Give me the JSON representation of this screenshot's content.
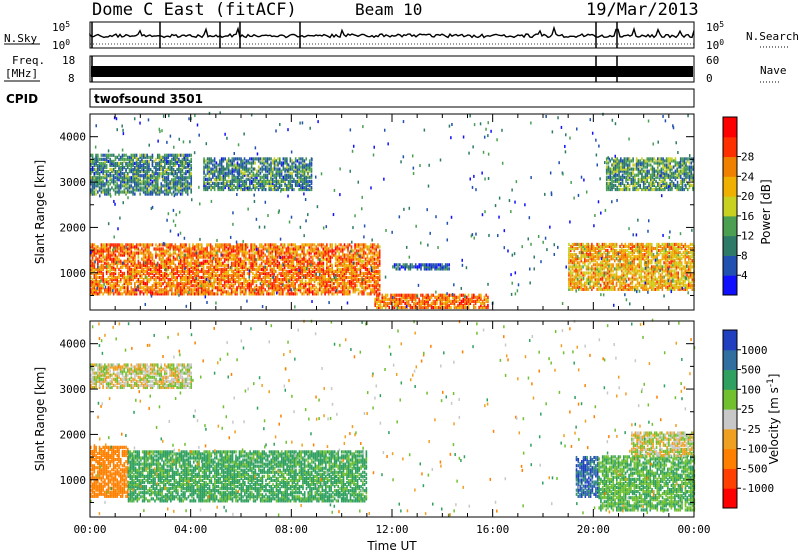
{
  "header": {
    "station": "Dome C East (fitACF)",
    "beam": "Beam 10",
    "date": "19/Mar/2013"
  },
  "top_panels": {
    "nsky_label": "N.Sky",
    "nsearch_label": "N.Search",
    "nsky_ticks": [
      "10^5",
      "10^0"
    ],
    "freq_label_1": "Freq.",
    "freq_label_2": "[MHz]",
    "freq_ticks": [
      "18",
      "8"
    ],
    "nave_label": "Nave",
    "nave_ticks": [
      "60",
      "0"
    ],
    "cpid_label": "CPID",
    "cpid_value": "twofsound 3501"
  },
  "colors": {
    "power_scale": [
      "#1010ff",
      "#2050b0",
      "#2e7a68",
      "#4aa050",
      "#c8d020",
      "#f0b000",
      "#f08000",
      "#ff3000",
      "#ff0000"
    ],
    "velocity_scale": [
      "#ff0000",
      "#ff4000",
      "#ff8000",
      "#f0a020",
      "#c8c8c8",
      "#70c030",
      "#30a060",
      "#3070a0",
      "#2040c0"
    ]
  },
  "chart_data": [
    {
      "type": "heatmap",
      "title": "",
      "xlabel": "",
      "ylabel": "Slant Range [km]",
      "xlim": [
        "00:00",
        "24:00"
      ],
      "ylim": [
        180,
        4500
      ],
      "x_ticks": [
        "00:00",
        "04:00",
        "08:00",
        "12:00",
        "16:00",
        "20:00",
        "00:00"
      ],
      "y_ticks": [
        1000,
        2000,
        3000,
        4000
      ],
      "colorbar": {
        "label": "Power [dB]",
        "ticks": [
          4,
          8,
          12,
          16,
          20,
          24,
          28
        ]
      },
      "regions": [
        {
          "t_start": 0.0,
          "t_end": 11.5,
          "r_min": 500,
          "r_max": 1600,
          "value": 28
        },
        {
          "t_start": 11.3,
          "t_end": 15.8,
          "r_min": 200,
          "r_max": 500,
          "value": 28
        },
        {
          "t_start": 12.0,
          "t_end": 14.3,
          "r_min": 1050,
          "r_max": 1150,
          "value": 8
        },
        {
          "t_start": 19.0,
          "t_end": 24.0,
          "r_min": 600,
          "r_max": 1600,
          "value": 24
        },
        {
          "t_start": 0.0,
          "t_end": 4.0,
          "r_min": 2700,
          "r_max": 3600,
          "value": 12
        },
        {
          "t_start": 4.5,
          "t_end": 8.8,
          "r_min": 2800,
          "r_max": 3500,
          "value": 12
        },
        {
          "t_start": 20.5,
          "t_end": 24.0,
          "r_min": 2800,
          "r_max": 3500,
          "value": 14
        }
      ]
    },
    {
      "type": "heatmap",
      "title": "",
      "xlabel": "Time UT",
      "ylabel": "Slant Range [km]",
      "xlim": [
        "00:00",
        "24:00"
      ],
      "ylim": [
        180,
        4500
      ],
      "x_ticks": [
        "00:00",
        "04:00",
        "08:00",
        "12:00",
        "16:00",
        "20:00",
        "00:00"
      ],
      "y_ticks": [
        1000,
        2000,
        3000,
        4000
      ],
      "colorbar": {
        "label": "Velocity [m s^-1]",
        "ticks": [
          1000,
          500,
          100,
          25,
          -25,
          -100,
          -500,
          -1000
        ]
      },
      "regions": [
        {
          "t_start": 0.0,
          "t_end": 1.5,
          "r_min": 600,
          "r_max": 1700,
          "value": -300
        },
        {
          "t_start": 1.5,
          "t_end": 11.0,
          "r_min": 500,
          "r_max": 1600,
          "value": 150
        },
        {
          "t_start": 19.3,
          "t_end": 20.2,
          "r_min": 600,
          "r_max": 1500,
          "value": 900
        },
        {
          "t_start": 20.2,
          "t_end": 24.0,
          "r_min": 300,
          "r_max": 1500,
          "value": 100
        },
        {
          "t_start": 0.0,
          "t_end": 4.0,
          "r_min": 3000,
          "r_max": 3500,
          "value": 0
        },
        {
          "t_start": 21.5,
          "t_end": 24.0,
          "r_min": 1500,
          "r_max": 2000,
          "value": 0
        }
      ]
    }
  ]
}
